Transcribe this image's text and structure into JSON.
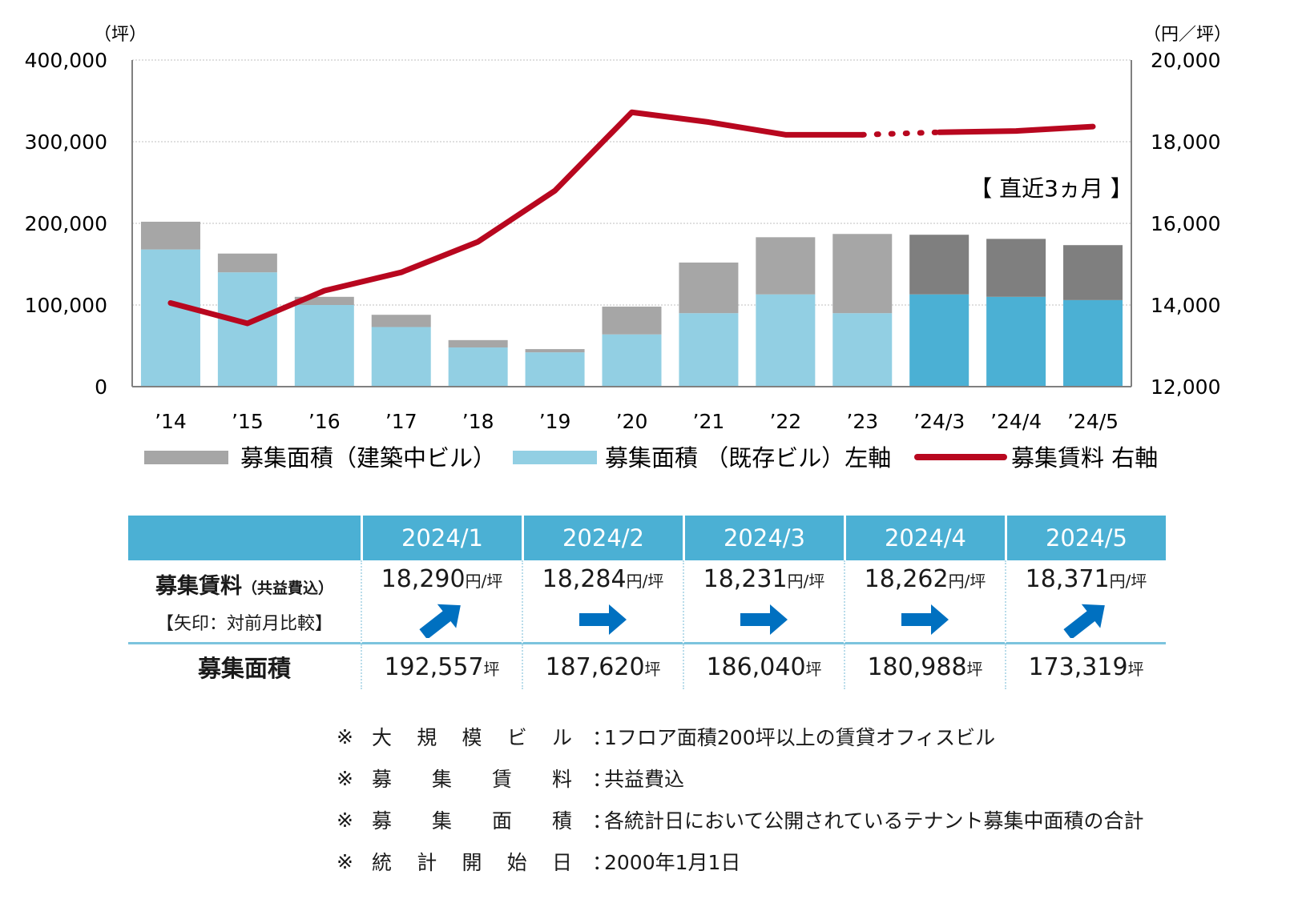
{
  "chart_data": {
    "type": "bar+line",
    "categories": [
      "’14",
      "’15",
      "’16",
      "’17",
      "’18",
      "’19",
      "’20",
      "’21",
      "’22",
      "’23",
      "’24/3",
      "’24/4",
      "’24/5"
    ],
    "series": [
      {
        "name": "募集面積（既存ビル）",
        "axis": "left",
        "type": "bar-stacked",
        "values": [
          168000,
          140000,
          100000,
          73000,
          48000,
          42000,
          64000,
          90000,
          113000,
          90000,
          113000,
          110000,
          106000
        ]
      },
      {
        "name": "募集面積（建築中ビル）",
        "axis": "left",
        "type": "bar-stacked",
        "values": [
          34000,
          23000,
          10000,
          15000,
          9000,
          4000,
          34000,
          62000,
          70000,
          97000,
          73040,
          70988,
          67319
        ]
      },
      {
        "name": "募集賃料",
        "axis": "right",
        "type": "line",
        "values": [
          14050,
          13550,
          14350,
          14800,
          15550,
          16800,
          18720,
          18480,
          18170,
          18170,
          18231,
          18262,
          18371
        ]
      }
    ],
    "left_axis": {
      "unit": "（坪）",
      "ylim": [
        0,
        400000
      ],
      "ticks": [
        "0",
        "100,000",
        "200,000",
        "300,000",
        "400,000"
      ]
    },
    "right_axis": {
      "unit": "（円／坪）",
      "ylim": [
        12000,
        20000
      ],
      "ticks": [
        "12,000",
        "14,000",
        "16,000",
        "18,000",
        "20,000"
      ]
    },
    "annotation": "【 直近3ヵ月 】",
    "legend": [
      {
        "label": "募集面積（建築中ビル）",
        "color": "#a6a6a6"
      },
      {
        "label": "募集面積 （既存ビル）左軸",
        "color": "#92cfe3"
      },
      {
        "label": "募集賃料 右軸",
        "color": "#b8071f"
      }
    ],
    "colors": {
      "existing": "#92cfe3",
      "construction": "#a6a6a6",
      "existing_recent": "#4bb0d4",
      "construction_recent": "#7f7f7f",
      "line": "#b8071f",
      "grid": "#bfbfbf"
    }
  },
  "table": {
    "months": [
      "2024/1",
      "2024/2",
      "2024/3",
      "2024/4",
      "2024/5"
    ],
    "rent_label": "募集賃料",
    "rent_label_sub": "（共益費込）",
    "rent_note": "【矢印：対前月比較】",
    "rent_values": [
      "18,290",
      "18,284",
      "18,231",
      "18,262",
      "18,371"
    ],
    "rent_unit": "円/坪",
    "arrows": [
      "up-right",
      "right",
      "right",
      "right",
      "up-right"
    ],
    "arrow_color": "#0070c0",
    "area_label": "募集面積",
    "area_values": [
      "192,557",
      "187,620",
      "186,040",
      "180,988",
      "173,319"
    ],
    "area_unit": "坪"
  },
  "notes": [
    {
      "mark": "※",
      "key": [
        "大",
        "規",
        "模",
        "ビ",
        "ル"
      ],
      "text": "1フロア面積200坪以上の賃貸オフィスビル"
    },
    {
      "mark": "※",
      "key": [
        "募",
        "集",
        "賃",
        "料"
      ],
      "text": "共益費込"
    },
    {
      "mark": "※",
      "key": [
        "募",
        "集",
        "面",
        "積"
      ],
      "text": "各統計日において公開されているテナント募集中面積の合計"
    },
    {
      "mark": "※",
      "key": [
        "統",
        "計",
        "開",
        "始",
        "日"
      ],
      "text": "2000年1月1日"
    }
  ]
}
